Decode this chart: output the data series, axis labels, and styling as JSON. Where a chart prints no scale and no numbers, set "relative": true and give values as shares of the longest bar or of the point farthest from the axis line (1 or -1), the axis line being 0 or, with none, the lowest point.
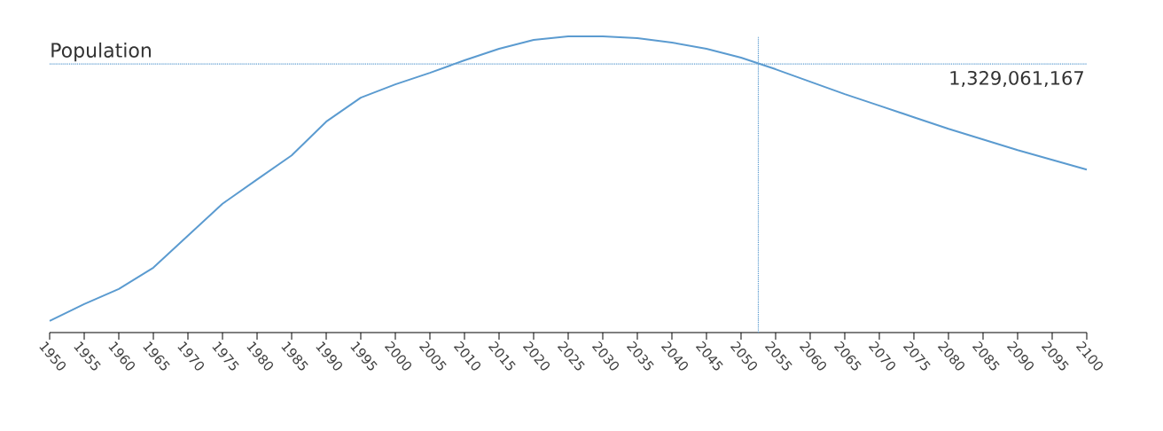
{
  "chart_data": {
    "type": "line",
    "ylabel": "Population",
    "relative": true,
    "x": [
      1950,
      1955,
      1960,
      1965,
      1970,
      1975,
      1980,
      1985,
      1990,
      1995,
      2000,
      2005,
      2010,
      2015,
      2020,
      2025,
      2030,
      2035,
      2040,
      2045,
      2050,
      2055,
      2060,
      2065,
      2070,
      2075,
      2080,
      2085,
      2090,
      2095,
      2100
    ],
    "series": [
      {
        "color": "#5b9bd0",
        "values": [
          0.039,
          0.096,
          0.147,
          0.219,
          0.327,
          0.435,
          0.517,
          0.598,
          0.712,
          0.793,
          0.838,
          0.877,
          0.919,
          0.958,
          0.988,
          1,
          1,
          0.994,
          0.979,
          0.958,
          0.928,
          0.889,
          0.847,
          0.805,
          0.766,
          0.727,
          0.688,
          0.652,
          0.616,
          0.583,
          0.55
        ]
      }
    ],
    "xlim": [
      1950,
      2100
    ],
    "xticks": [
      1950,
      1955,
      1960,
      1965,
      1970,
      1975,
      1980,
      1985,
      1990,
      1995,
      2000,
      2005,
      2010,
      2015,
      2020,
      2025,
      2030,
      2035,
      2040,
      2045,
      2050,
      2055,
      2060,
      2065,
      2070,
      2075,
      2080,
      2085,
      2090,
      2095,
      2100
    ],
    "annotations": [
      "1,329,061,167"
    ],
    "ref_lines": [
      {
        "axis": "y",
        "value": 0.907,
        "color": "#5b9bd0",
        "line_style": "dotted"
      },
      {
        "axis": "x",
        "value": 2052.5,
        "color": "#5b9bd0",
        "line_style": "dotted"
      }
    ]
  }
}
